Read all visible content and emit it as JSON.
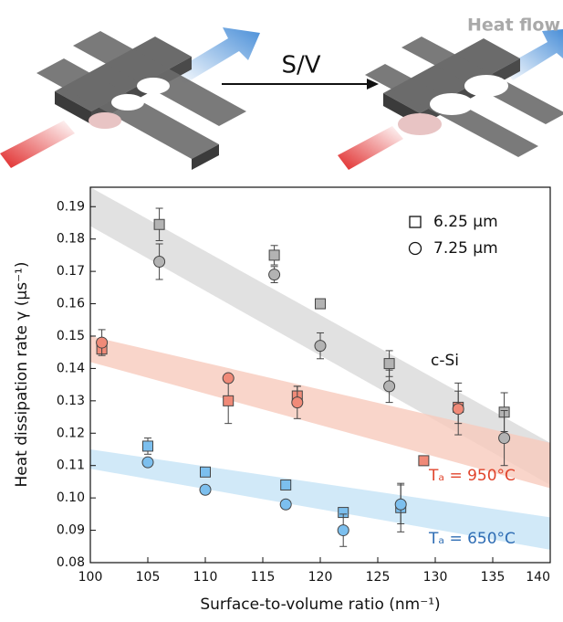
{
  "header": {
    "center_label": "S/V",
    "corner_label": "Heat flow"
  },
  "chart_data": {
    "type": "scatter",
    "xlabel": "Surface-to-volume ratio (nm⁻¹)",
    "ylabel": "Heat dissipation rate γ (μs⁻¹)",
    "xlim": [
      100,
      140
    ],
    "ylim": [
      0.08,
      0.196
    ],
    "xticks": [
      100,
      105,
      110,
      115,
      120,
      125,
      130,
      135,
      140
    ],
    "yticks": [
      0.08,
      0.09,
      {
        "value": 0.1,
        "label": "0.10"
      },
      0.11,
      0.12,
      0.13,
      0.14,
      0.15,
      0.16,
      0.17,
      0.18,
      0.19
    ],
    "legend_items": [
      {
        "label": "6.25 μm",
        "marker": "square"
      },
      {
        "label": "7.25 μm",
        "marker": "circle"
      }
    ],
    "legend_position": "upper right",
    "annotations": [
      {
        "text": "c-Si",
        "color": "#111111"
      },
      {
        "text": "Tₐ = 950°C",
        "color": "#e0442c"
      },
      {
        "text": "Tₐ = 650°C",
        "color": "#2e6db4"
      }
    ],
    "bands": [
      {
        "color": "#d9d9d9",
        "x": [
          100,
          140
        ],
        "upper": [
          0.196,
          0.117
        ],
        "lower": [
          0.184,
          0.104
        ]
      },
      {
        "color": "#f7cbbd",
        "x": [
          100,
          140
        ],
        "upper": [
          0.15,
          0.117
        ],
        "lower": [
          0.142,
          0.103
        ]
      },
      {
        "color": "#c6e4f6",
        "x": [
          100,
          140
        ],
        "upper": [
          0.115,
          0.094
        ],
        "lower": [
          0.109,
          0.084
        ]
      }
    ],
    "series": [
      {
        "marker": "square",
        "color": "#b3b3b3",
        "x": [
          106,
          116,
          120,
          126,
          136
        ],
        "values": [
          0.1845,
          0.175,
          0.16,
          0.1415,
          0.1265
        ],
        "errors": [
          0.005,
          0.003,
          null,
          0.004,
          0.006
        ]
      },
      {
        "marker": "circle",
        "color": "#b3b3b3",
        "x": [
          106,
          116,
          120,
          126,
          136
        ],
        "values": [
          0.173,
          0.169,
          0.147,
          0.1345,
          0.1185
        ],
        "errors": [
          0.0055,
          0.0025,
          0.004,
          0.005,
          0.0085
        ]
      },
      {
        "marker": "square",
        "color": "#f08a78",
        "x": [
          101,
          112,
          118,
          129,
          132
        ],
        "values": [
          0.146,
          0.13,
          0.1315,
          0.1115,
          0.128
        ],
        "errors": [
          null,
          0.007,
          0.003,
          null,
          0.005
        ]
      },
      {
        "marker": "circle",
        "color": "#f08a78",
        "x": [
          101,
          112,
          118,
          132
        ],
        "values": [
          0.148,
          0.137,
          0.1295,
          0.1275
        ],
        "errors": [
          0.004,
          null,
          0.005,
          0.008
        ]
      },
      {
        "marker": "square",
        "color": "#7cbfee",
        "x": [
          105,
          110,
          117,
          122,
          127
        ],
        "values": [
          0.116,
          0.108,
          0.104,
          0.0955,
          0.097
        ],
        "errors": [
          0.0025,
          null,
          null,
          null,
          0.0075
        ]
      },
      {
        "marker": "circle",
        "color": "#7cbfee",
        "x": [
          105,
          110,
          117,
          122,
          127
        ],
        "values": [
          0.111,
          0.1025,
          0.098,
          0.09,
          0.098
        ],
        "errors": [
          null,
          null,
          null,
          0.005,
          0.006
        ]
      }
    ]
  }
}
